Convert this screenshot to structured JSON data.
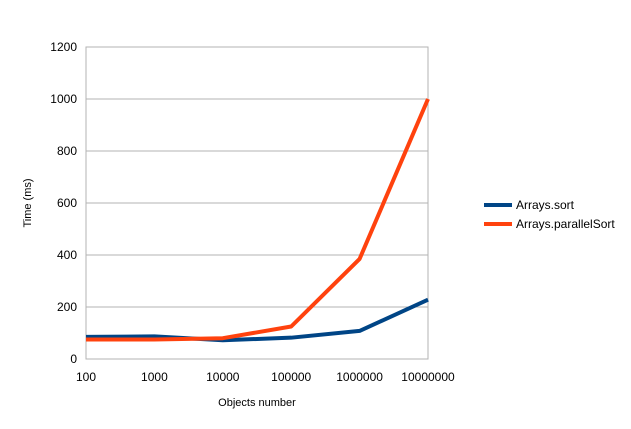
{
  "chart_data": {
    "type": "line",
    "title": "",
    "xlabel": "Objects number",
    "ylabel": "Time (ms)",
    "categories": [
      "100",
      "1000",
      "10000",
      "100000",
      "1000000",
      "10000000"
    ],
    "ylim": [
      0,
      1200
    ],
    "yticks": [
      0,
      200,
      400,
      600,
      800,
      1000,
      1200
    ],
    "grid": true,
    "legend_position": "right",
    "series": [
      {
        "name": "Arrays.sort",
        "color": "#004586",
        "values": [
          85,
          87,
          72,
          82,
          108,
          228
        ]
      },
      {
        "name": "Arrays.parallelSort",
        "color": "#ff420e",
        "values": [
          75,
          75,
          80,
          125,
          385,
          1000
        ]
      }
    ]
  }
}
